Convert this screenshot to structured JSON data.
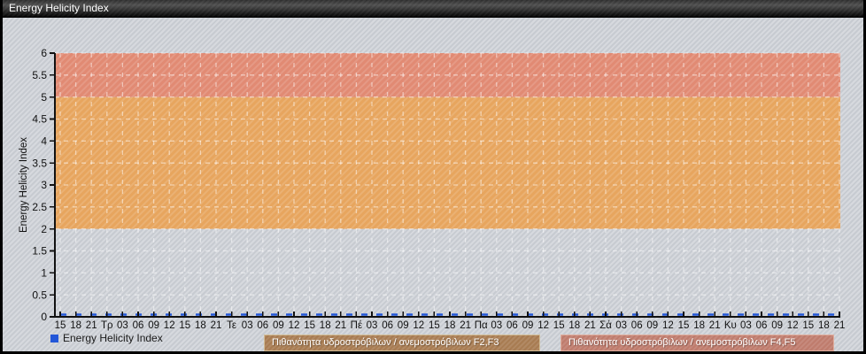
{
  "window": {
    "title": "Energy Helicity Index"
  },
  "chart_data": {
    "type": "line",
    "title": "Energy Helicity Index",
    "xlabel": "",
    "ylabel": "Energy Helicity Index",
    "ylim": [
      0,
      6
    ],
    "y_tick_labels": [
      "0",
      "0.5",
      "1",
      "1.5",
      "2",
      "2.5",
      "3",
      "3.5",
      "4",
      "4.5",
      "5",
      "5.5",
      "6"
    ],
    "x_tick_labels": [
      "15",
      "18",
      "21",
      "Τρ",
      "03",
      "06",
      "09",
      "12",
      "15",
      "18",
      "21",
      "Τε",
      "03",
      "06",
      "09",
      "12",
      "15",
      "18",
      "21",
      "Πέ",
      "03",
      "06",
      "09",
      "12",
      "15",
      "18",
      "21",
      "Πα",
      "03",
      "06",
      "09",
      "12",
      "15",
      "18",
      "21",
      "Σά",
      "03",
      "06",
      "09",
      "12",
      "15",
      "18",
      "21",
      "Κυ",
      "03",
      "06",
      "09",
      "12",
      "15",
      "18",
      "21"
    ],
    "grid": {
      "style": "dashed",
      "color": "#ffffff",
      "opacity": 0.5,
      "vertical_every_tick": true,
      "horizontal_every": 0.5
    },
    "background_bands": [
      {
        "from": 2,
        "to": 5,
        "color": "#e7a55e",
        "meaning": "Πιθανότητα υδροστρόβιλων / ανεμοστρόβιλων F2,F3"
      },
      {
        "from": 5,
        "to": 6,
        "color": "#e18a73",
        "meaning": "Πιθανότητα υδροστρόβιλων / ανεμοστρόβιλων F4,F5"
      }
    ],
    "series": [
      {
        "name": "Energy Helicity Index",
        "color": "#2357d8",
        "style": "dashed",
        "values": [
          0,
          0,
          0,
          0,
          0,
          0,
          0,
          0,
          0,
          0,
          0,
          0,
          0,
          0,
          0,
          0,
          0,
          0,
          0,
          0,
          0,
          0,
          0,
          0,
          0,
          0,
          0,
          0,
          0,
          0,
          0,
          0,
          0,
          0,
          0,
          0,
          0,
          0,
          0,
          0,
          0,
          0,
          0,
          0,
          0,
          0,
          0,
          0,
          0,
          0,
          0
        ]
      }
    ],
    "legend_position": "bottom-left"
  },
  "legend": {
    "label": "Energy Helicity Index",
    "marker_color": "#2357d8"
  },
  "band_labels": [
    {
      "text": "Πιθανότητα υδροστρόβιλων / ανεμοστρόβιλων F2,F3",
      "bg": "#a87c52",
      "border": "#d2bd97"
    },
    {
      "text": "Πιθανότητα υδροστρόβιλων / ανεμοστρόβιλων F4,F5",
      "bg": "#bf7c6d",
      "border": "#dfae9e"
    }
  ],
  "colors": {
    "page_bg": "#c7cbd1",
    "axis": "#111111"
  }
}
